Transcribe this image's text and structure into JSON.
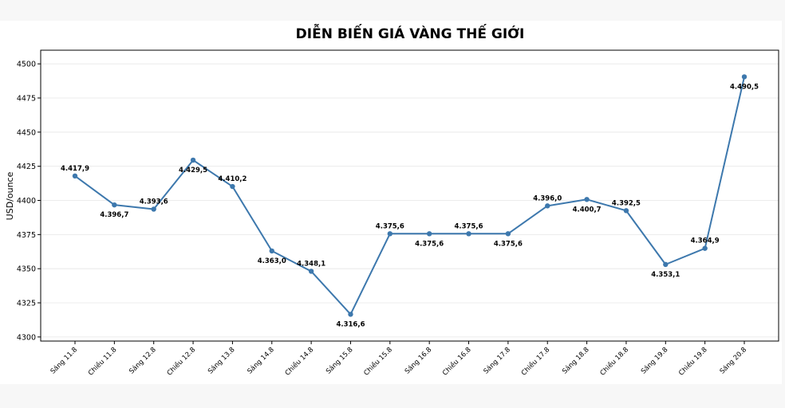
{
  "chart_data": {
    "type": "line",
    "title": "DIỄN BIẾN GIÁ VÀNG THẾ GIỚI",
    "ylabel": "USD/ounce",
    "xlabel": "",
    "ylim": [
      4297,
      4510
    ],
    "yticks": [
      4300,
      4325,
      4350,
      4375,
      4400,
      4425,
      4450,
      4475,
      4500
    ],
    "grid": true,
    "categories": [
      "Sáng 11.8",
      "Chiều 11.8",
      "Sáng 12.8",
      "Chiều 12.8",
      "Sáng 13.8",
      "Sáng 14.8",
      "Chiều 14.8",
      "Sáng 15.8",
      "Chiều 15.8",
      "Sáng 16.8",
      "Chiều 16.8",
      "Sáng 17.8",
      "Chiều 17.8",
      "Sáng 18.8",
      "Chiều 18.8",
      "Sáng 19.8",
      "Chiều 19.8",
      "Sáng 20.8"
    ],
    "values": [
      4417.9,
      4396.7,
      4393.6,
      4429.5,
      4410.2,
      4363.0,
      4348.1,
      4316.6,
      4375.6,
      4375.6,
      4375.6,
      4375.6,
      4396.0,
      4400.7,
      4392.5,
      4353.1,
      4364.9,
      4490.5
    ],
    "data_labels": [
      "4.417,9",
      "4.396,7",
      "4.393,6",
      "4.429,5",
      "4.410,2",
      "4.363,0",
      "4.348,1",
      "4.316,6",
      "4.375,6",
      "4.375,6",
      "4.375,6",
      "4.375,6",
      "4.396,0",
      "4.400,7",
      "4.392,5",
      "4.353,1",
      "4.364,9",
      "4.490,5"
    ],
    "label_side": [
      "above",
      "below",
      "above",
      "below",
      "above",
      "below",
      "above",
      "below",
      "above",
      "below",
      "above",
      "below",
      "above",
      "below",
      "above",
      "below",
      "above",
      "below"
    ],
    "line_color": "#3d78ad",
    "marker_color": "#3d78ad"
  }
}
